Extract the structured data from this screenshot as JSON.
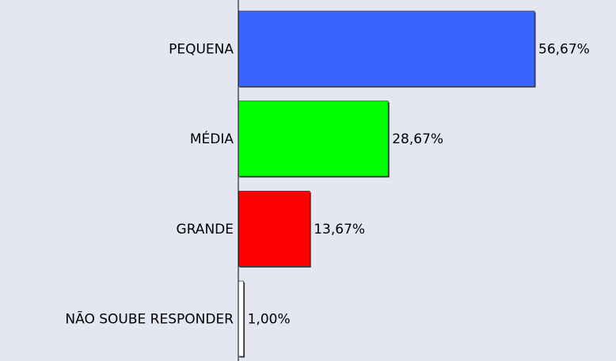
{
  "chart_data": {
    "type": "hbar",
    "categories": [
      "PEQUENA",
      "MÉDIA",
      "GRANDE",
      "NÃO SOUBE RESPONDER"
    ],
    "values": [
      56.67,
      28.67,
      13.67,
      1.0
    ],
    "value_labels": [
      "56,67%",
      "28,67%",
      "13,67%",
      "1,00%"
    ],
    "colors": [
      "#3a64ff",
      "#00ff00",
      "#ff0000",
      "#ffffff"
    ]
  }
}
